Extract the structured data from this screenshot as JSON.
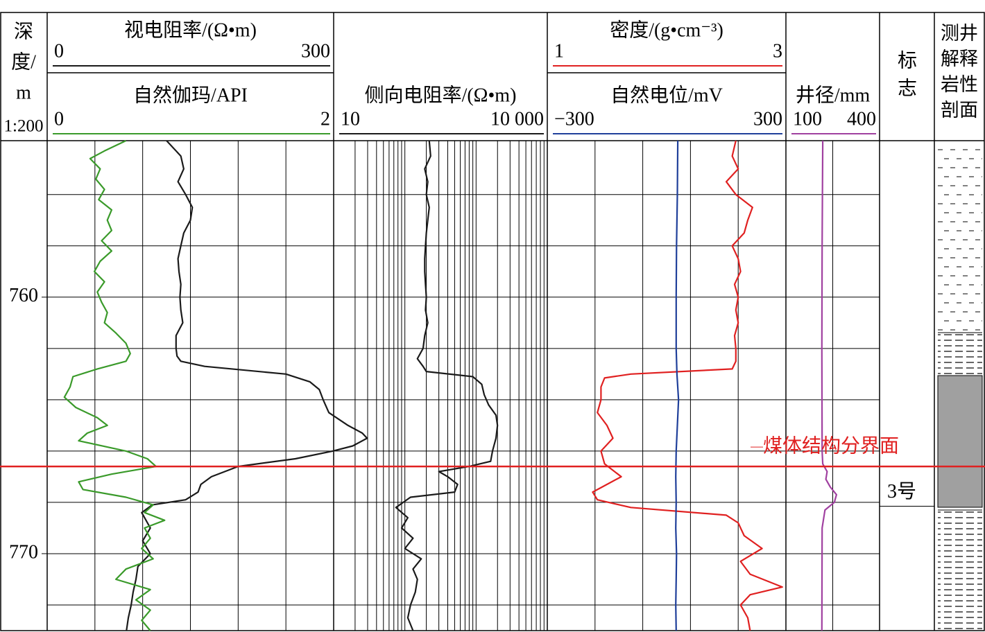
{
  "chart_data": {
    "type": "well_log",
    "depth_header": [
      "深",
      "度/",
      "m"
    ],
    "scale_label": "1:200",
    "ylim": [
      753.9,
      773
    ],
    "yticks": [
      760,
      770
    ],
    "ygrid": [
      756,
      758,
      760,
      762,
      764,
      766,
      768,
      770,
      772
    ],
    "tracks": [
      {
        "grid_x": [
          50,
          100,
          150,
          200,
          250
        ],
        "curves": [
          {
            "name": "视电阻率/(Ω•m)",
            "color": "#1a1a1a",
            "xlim": [
              0,
              300
            ],
            "xticks": [
              0,
              300
            ],
            "depth": [
              753.9,
              754.5,
              755,
              755.5,
              756,
              756.5,
              757,
              757.5,
              758,
              758.5,
              759,
              759.5,
              760,
              760.5,
              761,
              761.5,
              762,
              762.3,
              762.5,
              762.7,
              763,
              763.3,
              763.6,
              764,
              764.5,
              765,
              765.3,
              765.5,
              765.8,
              766,
              766.3,
              766.6,
              767,
              767.3,
              767.6,
              767.9,
              768.1,
              768.4,
              769,
              769.5,
              770,
              770.5,
              771,
              771.5,
              772,
              772.5,
              773
            ],
            "values": [
              125,
              140,
              143,
              137,
              145,
              152,
              150,
              143,
              140,
              137,
              138,
              140,
              139,
              140,
              142,
              135,
              135,
              136,
              140,
              165,
              250,
              275,
              285,
              289,
              295,
              315,
              330,
              335,
              320,
              299,
              260,
              200,
              172,
              161,
              158,
              145,
              110,
              99,
              108,
              100,
              108,
              95,
              93,
              90,
              88,
              85,
              83
            ]
          },
          {
            "name": "自然伽玛/API",
            "color": "#3a9a2a",
            "xlim": [
              0,
              2
            ],
            "xticks": [
              0,
              2
            ],
            "depth": [
              753.9,
              754.3,
              754.6,
              755,
              755.4,
              755.8,
              756.2,
              756.6,
              757,
              757.4,
              757.8,
              758.2,
              758.6,
              759,
              759.4,
              759.8,
              760.2,
              760.6,
              761,
              761.4,
              761.8,
              762.2,
              762.5,
              762.8,
              763.1,
              763.5,
              763.9,
              764.3,
              764.7,
              765,
              765.3,
              765.6,
              766,
              766.3,
              766.6,
              766.9,
              767.2,
              767.5,
              767.8,
              768.1,
              768.4,
              768.7,
              769,
              769.4,
              769.8,
              770.2,
              770.6,
              771,
              771.4,
              771.8,
              772.2,
              772.6,
              773
            ],
            "values": [
              0.55,
              0.4,
              0.3,
              0.37,
              0.34,
              0.4,
              0.36,
              0.45,
              0.42,
              0.45,
              0.38,
              0.45,
              0.37,
              0.33,
              0.4,
              0.35,
              0.38,
              0.42,
              0.4,
              0.48,
              0.55,
              0.58,
              0.55,
              0.35,
              0.18,
              0.16,
              0.12,
              0.2,
              0.35,
              0.42,
              0.28,
              0.22,
              0.55,
              0.7,
              0.76,
              0.45,
              0.22,
              0.25,
              0.55,
              0.74,
              0.68,
              0.82,
              0.68,
              0.72,
              0.66,
              0.74,
              0.55,
              0.48,
              0.72,
              0.62,
              0.72,
              0.66,
              0.72
            ]
          }
        ]
      },
      {
        "grid_x": [
          20,
          30,
          40,
          50,
          60,
          70,
          80,
          90,
          100,
          200,
          300,
          400,
          500,
          600,
          700,
          800,
          900,
          1000,
          2000,
          3000,
          4000,
          5000,
          6000,
          7000,
          8000,
          9000
        ],
        "curves": [
          {
            "name": "侧向电阻率/(Ω•m)",
            "color": "#1a1a1a",
            "xlim": [
              10,
              10000
            ],
            "log": true,
            "xticks": [
              10,
              {
                "value": 10000,
                "label": "10 000"
              }
            ],
            "depth": [
              753.9,
              754.5,
              755,
              755.5,
              756,
              756.5,
              757,
              757.5,
              758,
              758.5,
              759,
              759.5,
              760,
              760.5,
              761,
              761.5,
              762,
              762.4,
              762.7,
              762.9,
              763.1,
              763.4,
              763.8,
              764.2,
              764.6,
              765,
              765.5,
              766,
              766.4,
              766.6,
              766.8,
              767,
              767.3,
              767.6,
              767.8,
              768.2,
              768.6,
              769,
              769.4,
              769.8,
              770.2,
              770.6,
              771,
              771.5,
              772,
              772.5,
              773
            ],
            "values": [
              220,
              230,
              190,
              210,
              200,
              220,
              210,
              200,
              195,
              190,
              190,
              195,
              200,
              195,
              210,
              190,
              180,
              150,
              180,
              200,
              900,
              1200,
              1300,
              1500,
              1900,
              2000,
              1900,
              1700,
              1600,
              800,
              300,
              400,
              550,
              500,
              120,
              75,
              110,
              90,
              130,
              100,
              170,
              130,
              150,
              140,
              120,
              110,
              130
            ]
          }
        ]
      },
      {
        "grid_x": [
          1.4,
          1.8,
          2.2,
          2.6
        ],
        "curves": [
          {
            "name": "密度/(g•cm⁻³)",
            "color": "#e02020",
            "xlim": [
              1,
              3
            ],
            "xticks": [
              1,
              3
            ],
            "depth": [
              753.9,
              754.5,
              755,
              755.5,
              756,
              756.5,
              757,
              757.5,
              758,
              758.5,
              759,
              759.5,
              760,
              760.5,
              761,
              761.5,
              762,
              762.5,
              762.8,
              763,
              763.15,
              763.5,
              764,
              764.5,
              765,
              765.5,
              766,
              766.5,
              767,
              767.3,
              767.6,
              767.9,
              768.2,
              768.5,
              768.8,
              769.3,
              769.8,
              770.3,
              770.8,
              771.3,
              771.6,
              772,
              772.5,
              773
            ],
            "values": [
              2.58,
              2.55,
              2.6,
              2.5,
              2.58,
              2.72,
              2.68,
              2.65,
              2.55,
              2.6,
              2.62,
              2.57,
              2.6,
              2.58,
              2.6,
              2.57,
              2.58,
              2.58,
              2.55,
              1.7,
              1.48,
              1.45,
              1.45,
              1.42,
              1.5,
              1.55,
              1.45,
              1.48,
              1.62,
              1.5,
              1.38,
              1.42,
              1.7,
              2.5,
              2.6,
              2.65,
              2.8,
              2.62,
              2.7,
              2.97,
              2.7,
              2.62,
              2.68,
              2.7
            ]
          },
          {
            "name": "自然电位/mV",
            "color": "#1f3f9a",
            "xlim": [
              -300,
              300
            ],
            "xticks": [
              {
                "value": -300,
                "label": "−300"
              },
              300
            ],
            "depth": [
              753.9,
              756,
              758,
              760,
              762,
              763,
              764,
              765,
              766,
              767,
              768,
              769,
              770,
              771,
              772,
              773
            ],
            "values": [
              28,
              27,
              25,
              24,
              24,
              26,
              30,
              27,
              24,
              23,
              24,
              23,
              25,
              24,
              23,
              24
            ]
          }
        ]
      },
      {
        "grid_x": [
          250
        ],
        "curves": [
          {
            "name": "井径/mm",
            "color": "#a040a0",
            "xlim": [
              100,
              400
            ],
            "xticks": [
              100,
              400
            ],
            "depth": [
              753.9,
              758,
              762,
              766,
              766.5,
              766.8,
              767.1,
              767.4,
              767.7,
              768,
              768.3,
              769,
              773
            ],
            "values": [
              218,
              216,
              215,
              216,
              218,
              232,
              228,
              242,
              262,
              255,
              225,
              216,
              215
            ]
          }
        ]
      }
    ],
    "marker_header": [
      "标",
      "志"
    ],
    "marker": {
      "label": "3号",
      "top": 766.6,
      "bottom": 768.15
    },
    "lithology_header": [
      "测井",
      "解释",
      "岩性",
      "剖面"
    ],
    "boundary": {
      "label": "煤体结构分界面",
      "depth": 766.6
    }
  }
}
